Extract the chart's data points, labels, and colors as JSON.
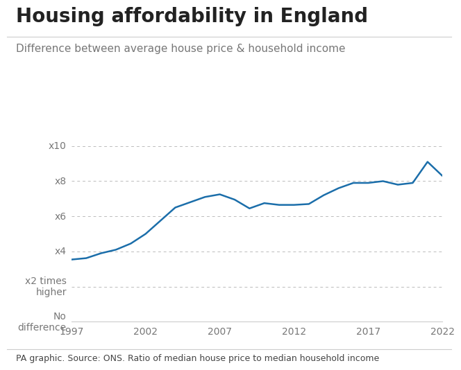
{
  "title": "Housing affordability in England",
  "subtitle": "Difference between average house price & household income",
  "footer": "PA graphic. Source: ONS. Ratio of median house price to median household income",
  "line_color": "#1b6eaa",
  "background_color": "#ffffff",
  "years": [
    1997,
    1998,
    1999,
    2000,
    2001,
    2002,
    2003,
    2004,
    2005,
    2006,
    2007,
    2008,
    2009,
    2010,
    2011,
    2012,
    2013,
    2014,
    2015,
    2016,
    2017,
    2018,
    2019,
    2020,
    2021,
    2022
  ],
  "values": [
    3.54,
    3.62,
    3.9,
    4.1,
    4.45,
    5.0,
    5.75,
    6.5,
    6.8,
    7.1,
    7.25,
    6.95,
    6.45,
    6.75,
    6.65,
    6.65,
    6.7,
    7.2,
    7.6,
    7.9,
    7.9,
    8.0,
    7.8,
    7.9,
    9.1,
    8.3
  ],
  "yticks": [
    0,
    2,
    4,
    6,
    8,
    10
  ],
  "xticks": [
    1997,
    2002,
    2007,
    2012,
    2017,
    2022
  ],
  "ylim": [
    0,
    10.8
  ],
  "xlim": [
    1997,
    2022
  ],
  "title_fontsize": 20,
  "subtitle_fontsize": 11,
  "tick_fontsize": 10,
  "footer_fontsize": 9,
  "grid_color": "#bbbbbb",
  "spine_color": "#cccccc",
  "label_color": "#777777",
  "text_color": "#222222",
  "footer_color": "#444444"
}
